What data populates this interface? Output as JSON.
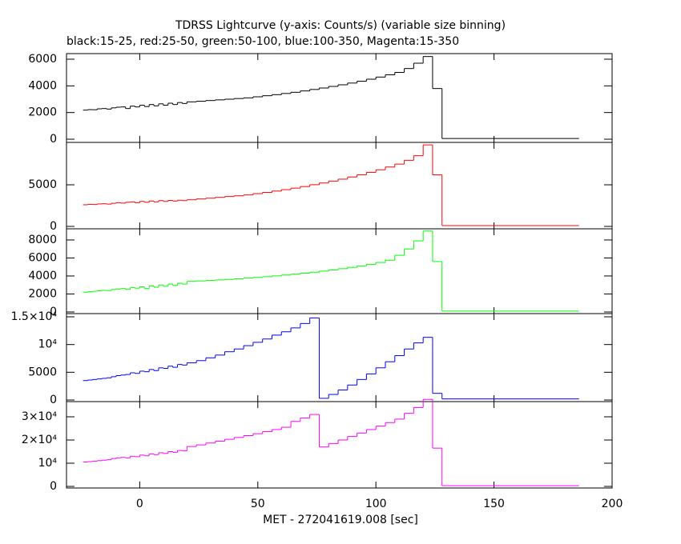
{
  "title": "TDRSS Lightcurve (y-axis: Counts/s) (variable size binning)",
  "subtitle": "black:15-25, red:25-50, green:50-100, blue:100-350, Magenta:15-350",
  "x_axis": {
    "label": "MET - 272041619.008 [sec]",
    "xlim": [
      -31,
      200
    ],
    "xticks": [
      0,
      50,
      100,
      150,
      200
    ]
  },
  "bins": [
    -24,
    -22,
    -20,
    -18,
    -16,
    -14,
    -12,
    -10,
    -8,
    -6,
    -4,
    -2,
    0,
    2,
    4,
    6,
    8,
    10,
    12,
    14,
    16,
    18,
    20,
    24,
    28,
    32,
    36,
    40,
    44,
    48,
    52,
    56,
    60,
    64,
    68,
    72,
    76,
    80,
    84,
    88,
    92,
    96,
    100,
    104,
    108,
    112,
    116,
    120,
    124,
    128,
    186
  ],
  "chart_data": [
    {
      "type": "line",
      "drawstyle": "steps",
      "color": "#000000",
      "ylim": [
        -240,
        6420
      ],
      "yticks": [
        0,
        2000,
        4000,
        6000
      ],
      "values": [
        2180,
        2220,
        2210,
        2280,
        2300,
        2260,
        2350,
        2400,
        2420,
        2300,
        2480,
        2420,
        2550,
        2450,
        2600,
        2500,
        2650,
        2550,
        2700,
        2600,
        2750,
        2680,
        2800,
        2850,
        2900,
        2950,
        3000,
        3050,
        3100,
        3180,
        3260,
        3340,
        3430,
        3520,
        3620,
        3730,
        3840,
        3960,
        4080,
        4210,
        4350,
        4500,
        4660,
        4830,
        5010,
        5300,
        5700,
        6200,
        3800,
        50
      ]
    },
    {
      "type": "line",
      "drawstyle": "steps",
      "color": "#ff0000",
      "ylim": [
        -290,
        10100
      ],
      "yticks": [
        0,
        5000
      ],
      "values": [
        2600,
        2650,
        2630,
        2700,
        2720,
        2680,
        2780,
        2850,
        2800,
        2900,
        2950,
        2850,
        3000,
        2900,
        3050,
        2950,
        3100,
        3000,
        3120,
        3050,
        3150,
        3100,
        3200,
        3300,
        3390,
        3490,
        3590,
        3680,
        3780,
        3940,
        4090,
        4250,
        4420,
        4600,
        4790,
        5010,
        5220,
        5450,
        5680,
        5940,
        6210,
        6500,
        6810,
        7140,
        7490,
        7950,
        8500,
        9800,
        6200,
        100
      ]
    },
    {
      "type": "line",
      "drawstyle": "steps",
      "color": "#00ff00",
      "ylim": [
        -180,
        9240
      ],
      "yticks": [
        0,
        2000,
        4000,
        6000,
        8000
      ],
      "values": [
        2200,
        2250,
        2300,
        2350,
        2400,
        2380,
        2500,
        2550,
        2600,
        2500,
        2700,
        2650,
        2800,
        2600,
        2900,
        2750,
        3000,
        2850,
        3100,
        2950,
        3200,
        3100,
        3400,
        3450,
        3500,
        3560,
        3620,
        3690,
        3760,
        3840,
        3920,
        4010,
        4100,
        4200,
        4310,
        4420,
        4540,
        4670,
        4810,
        4960,
        5120,
        5300,
        5500,
        5750,
        6300,
        7000,
        7900,
        9000,
        5600,
        100
      ]
    },
    {
      "type": "line",
      "drawstyle": "steps",
      "color": "#0000ff",
      "ylim": [
        -290,
        15580
      ],
      "yticks": [
        0,
        5000,
        {
          "value": 10000,
          "label": "10⁴"
        },
        {
          "value": 15000,
          "label": "1.5×10⁴"
        }
      ],
      "values": [
        3500,
        3600,
        3700,
        3800,
        3900,
        4000,
        4200,
        4400,
        4500,
        4600,
        4900,
        4800,
        5200,
        5100,
        5500,
        5300,
        5800,
        5700,
        6100,
        5900,
        6400,
        6300,
        6700,
        7100,
        7600,
        8100,
        8700,
        9200,
        9800,
        10400,
        11000,
        11700,
        12300,
        13000,
        13800,
        14800,
        300,
        1000,
        1800,
        2700,
        3700,
        4700,
        5800,
        6900,
        8000,
        9200,
        10300,
        11300,
        1200,
        200
      ]
    },
    {
      "type": "line",
      "drawstyle": "steps",
      "color": "#ff00ff",
      "ylim": [
        -690,
        36550
      ],
      "yticks": [
        0,
        {
          "value": 10000,
          "label": "10⁴"
        },
        {
          "value": 20000,
          "label": "2×10⁴"
        },
        {
          "value": 30000,
          "label": "3×10⁴"
        }
      ],
      "values": [
        10500,
        10700,
        10900,
        11100,
        11300,
        11500,
        12000,
        12300,
        12500,
        12300,
        13000,
        12800,
        13500,
        13200,
        14000,
        13700,
        14500,
        14200,
        15000,
        14700,
        15500,
        15300,
        17200,
        17900,
        18700,
        19500,
        20300,
        21100,
        21900,
        22700,
        23600,
        24500,
        25500,
        28000,
        29500,
        31000,
        17000,
        18500,
        20000,
        21500,
        23000,
        24500,
        26000,
        27500,
        29000,
        31500,
        34000,
        37500,
        16500,
        300
      ]
    }
  ]
}
